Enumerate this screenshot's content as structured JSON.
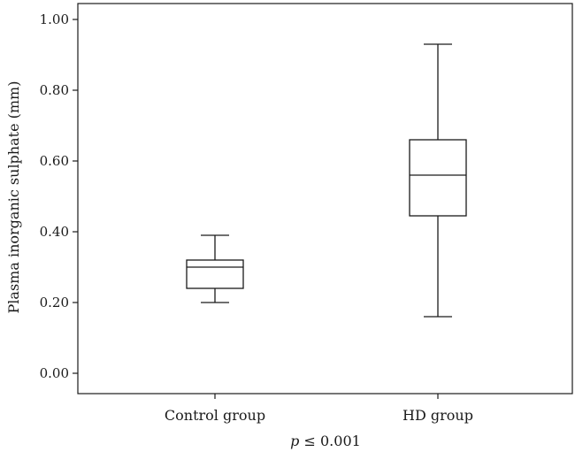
{
  "chart_data": {
    "type": "box",
    "ylabel": "Plasma inorganic sulphate (mm)",
    "xlabel": "",
    "ylim": [
      0,
      1.0
    ],
    "yticks": [
      0.0,
      0.2,
      0.4,
      0.6,
      0.8,
      1.0
    ],
    "ytick_labels": [
      "0.00",
      "0.20",
      "0.40",
      "0.60",
      "0.80",
      "1.00"
    ],
    "categories": [
      "Control group",
      "HD group"
    ],
    "boxes": [
      {
        "name": "Control group",
        "min": 0.2,
        "q1": 0.24,
        "median": 0.3,
        "q3": 0.32,
        "max": 0.39
      },
      {
        "name": "HD group",
        "min": 0.16,
        "q1": 0.445,
        "median": 0.56,
        "q3": 0.66,
        "max": 0.93
      }
    ],
    "annotation": {
      "italic_part": "p",
      "rest": " ≤ 0.001"
    },
    "grid": false,
    "colors": {
      "line": "#1a1a1a",
      "background": "#ffffff"
    }
  }
}
